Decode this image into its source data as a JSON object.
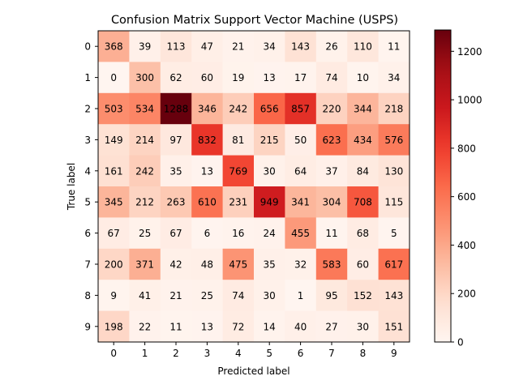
{
  "chart_data": {
    "type": "heatmap",
    "title": "Confusion Matrix Support Vector Machine (USPS)",
    "xlabel": "Predicted label",
    "ylabel": "True label",
    "x_categories": [
      "0",
      "1",
      "2",
      "3",
      "4",
      "5",
      "6",
      "7",
      "8",
      "9"
    ],
    "y_categories": [
      "0",
      "1",
      "2",
      "3",
      "4",
      "5",
      "6",
      "7",
      "8",
      "9"
    ],
    "matrix": [
      [
        368,
        39,
        113,
        47,
        21,
        34,
        143,
        26,
        110,
        11
      ],
      [
        0,
        300,
        62,
        60,
        19,
        13,
        17,
        74,
        10,
        34
      ],
      [
        503,
        534,
        1288,
        346,
        242,
        656,
        857,
        220,
        344,
        218
      ],
      [
        149,
        214,
        97,
        832,
        81,
        215,
        50,
        623,
        434,
        576
      ],
      [
        161,
        242,
        35,
        13,
        769,
        30,
        64,
        37,
        84,
        130
      ],
      [
        345,
        212,
        263,
        610,
        231,
        949,
        341,
        304,
        708,
        115
      ],
      [
        67,
        25,
        67,
        6,
        16,
        24,
        455,
        11,
        68,
        5
      ],
      [
        200,
        371,
        42,
        48,
        475,
        35,
        32,
        583,
        60,
        617
      ],
      [
        9,
        41,
        21,
        25,
        74,
        30,
        1,
        95,
        152,
        143
      ],
      [
        198,
        22,
        11,
        13,
        72,
        14,
        40,
        27,
        30,
        151
      ]
    ],
    "colormap": "Reds",
    "value_range": [
      0,
      1288
    ],
    "colorbar_ticks": [
      0,
      200,
      400,
      600,
      800,
      1000,
      1200
    ],
    "grid": false,
    "colors": {
      "low": "#fff5f0",
      "high": "#67000d",
      "text": "#000000"
    }
  }
}
